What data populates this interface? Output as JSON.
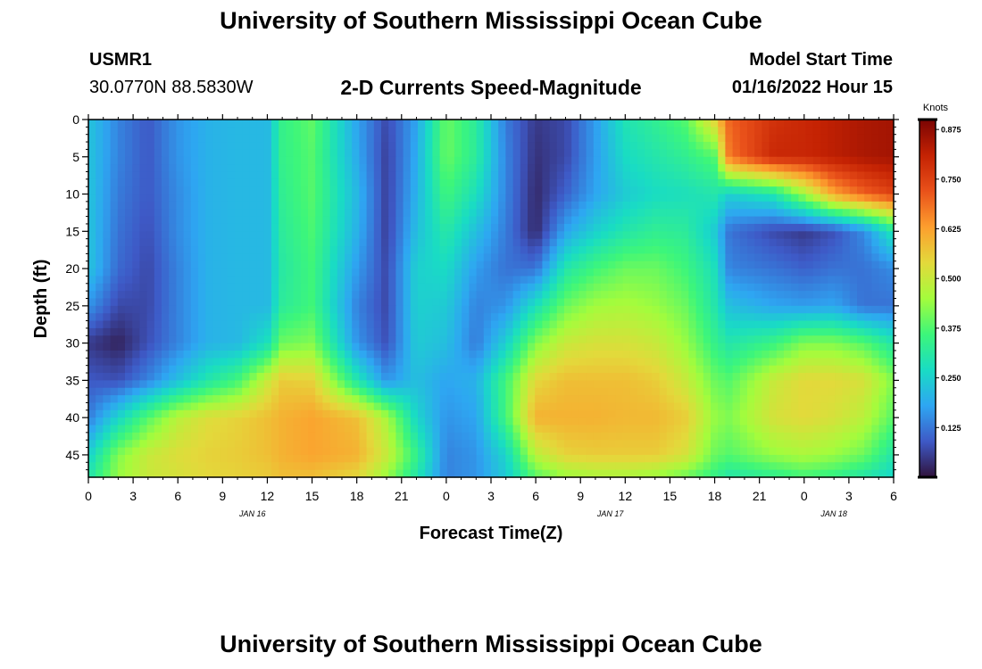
{
  "page": {
    "title": "University of Southern Mississippi Ocean Cube",
    "station_id": "USMR1",
    "location": "30.0770N  88.5830W",
    "subtitle": "2-D Currents Speed-Magnitude",
    "model_start_label": "Model Start Time",
    "model_start_value": "01/16/2022 Hour 15",
    "footer_title": "University of Southern Mississippi Ocean Cube"
  },
  "colors": {
    "colormap": [
      "#30123b",
      "#3e59c6",
      "#2ea6f2",
      "#19dcc4",
      "#3df67a",
      "#a4fc3c",
      "#e3d93b",
      "#fd9e2e",
      "#e9511a",
      "#c42203",
      "#7a0403"
    ]
  },
  "chart_data": {
    "type": "heatmap",
    "xlabel": "Forecast Time(Z)",
    "ylabel": "Depth (ft)",
    "x_ticks": [
      "0",
      "3",
      "6",
      "9",
      "12",
      "15",
      "18",
      "21",
      "0",
      "3",
      "6",
      "9",
      "12",
      "15",
      "18",
      "21",
      "0",
      "3",
      "6"
    ],
    "x_range": [
      0,
      54
    ],
    "date_labels": [
      {
        "label": "JAN 16",
        "hours_from_start": 11
      },
      {
        "label": "JAN 17",
        "hours_from_start": 35
      },
      {
        "label": "JAN 18",
        "hours_from_start": 50
      }
    ],
    "y_ticks": [
      0,
      5,
      10,
      15,
      20,
      25,
      30,
      35,
      40,
      45
    ],
    "y_range": [
      0,
      48
    ],
    "colorbar": {
      "label": "Knots",
      "ticks": [
        "0.875",
        "0.750",
        "0.625",
        "0.500",
        "0.375",
        "0.250",
        "0.125"
      ],
      "tick_values": [
        0.875,
        0.75,
        0.625,
        0.5,
        0.375,
        0.25,
        0.125
      ],
      "range": [
        0.0,
        0.9
      ]
    },
    "x_nodes": [
      0,
      2,
      4,
      6,
      8,
      10,
      12,
      13,
      15,
      18,
      20,
      22,
      24,
      26,
      28,
      30,
      32,
      34,
      36,
      38,
      40,
      42,
      43,
      46,
      48,
      50,
      52,
      54
    ],
    "depth_nodes": [
      0,
      5,
      10,
      15,
      20,
      25,
      30,
      35,
      40,
      45,
      48
    ],
    "speed_knots": [
      [
        0.23,
        0.14,
        0.09,
        0.16,
        0.2,
        0.21,
        0.21,
        0.34,
        0.39,
        0.18,
        0.07,
        0.18,
        0.4,
        0.32,
        0.13,
        0.05,
        0.07,
        0.17,
        0.29,
        0.33,
        0.38,
        0.55,
        0.7,
        0.78,
        0.8,
        0.82,
        0.84,
        0.85
      ],
      [
        0.23,
        0.14,
        0.09,
        0.16,
        0.2,
        0.21,
        0.21,
        0.34,
        0.38,
        0.19,
        0.06,
        0.19,
        0.4,
        0.32,
        0.14,
        0.04,
        0.07,
        0.17,
        0.27,
        0.3,
        0.33,
        0.38,
        0.68,
        0.8,
        0.8,
        0.82,
        0.84,
        0.85
      ],
      [
        0.23,
        0.13,
        0.09,
        0.15,
        0.2,
        0.21,
        0.21,
        0.33,
        0.38,
        0.21,
        0.06,
        0.2,
        0.36,
        0.28,
        0.14,
        0.03,
        0.1,
        0.18,
        0.24,
        0.27,
        0.28,
        0.3,
        0.25,
        0.3,
        0.45,
        0.62,
        0.7,
        0.75
      ],
      [
        0.23,
        0.12,
        0.08,
        0.15,
        0.2,
        0.21,
        0.21,
        0.32,
        0.37,
        0.2,
        0.06,
        0.22,
        0.31,
        0.22,
        0.13,
        0.03,
        0.18,
        0.25,
        0.3,
        0.33,
        0.32,
        0.24,
        0.12,
        0.07,
        0.05,
        0.08,
        0.15,
        0.3
      ],
      [
        0.23,
        0.11,
        0.07,
        0.14,
        0.2,
        0.21,
        0.21,
        0.31,
        0.36,
        0.17,
        0.07,
        0.25,
        0.27,
        0.17,
        0.12,
        0.12,
        0.3,
        0.36,
        0.4,
        0.4,
        0.36,
        0.28,
        0.14,
        0.12,
        0.1,
        0.12,
        0.12,
        0.15
      ],
      [
        0.16,
        0.07,
        0.07,
        0.14,
        0.2,
        0.21,
        0.21,
        0.32,
        0.36,
        0.14,
        0.07,
        0.25,
        0.24,
        0.14,
        0.16,
        0.28,
        0.4,
        0.45,
        0.46,
        0.44,
        0.4,
        0.3,
        0.22,
        0.18,
        0.17,
        0.18,
        0.12,
        0.12
      ],
      [
        0.05,
        0.02,
        0.08,
        0.14,
        0.2,
        0.21,
        0.28,
        0.4,
        0.42,
        0.16,
        0.08,
        0.24,
        0.22,
        0.13,
        0.25,
        0.42,
        0.5,
        0.52,
        0.52,
        0.5,
        0.44,
        0.34,
        0.3,
        0.35,
        0.42,
        0.42,
        0.38,
        0.3
      ],
      [
        0.09,
        0.08,
        0.14,
        0.22,
        0.3,
        0.36,
        0.5,
        0.56,
        0.55,
        0.3,
        0.16,
        0.22,
        0.18,
        0.2,
        0.36,
        0.54,
        0.58,
        0.58,
        0.58,
        0.56,
        0.5,
        0.4,
        0.38,
        0.5,
        0.54,
        0.54,
        0.52,
        0.42
      ],
      [
        0.13,
        0.26,
        0.38,
        0.48,
        0.53,
        0.55,
        0.58,
        0.6,
        0.62,
        0.58,
        0.46,
        0.26,
        0.16,
        0.18,
        0.36,
        0.6,
        0.6,
        0.6,
        0.59,
        0.59,
        0.56,
        0.44,
        0.42,
        0.52,
        0.54,
        0.52,
        0.48,
        0.38
      ],
      [
        0.25,
        0.42,
        0.5,
        0.53,
        0.55,
        0.56,
        0.58,
        0.6,
        0.62,
        0.6,
        0.5,
        0.34,
        0.14,
        0.16,
        0.26,
        0.48,
        0.55,
        0.56,
        0.56,
        0.56,
        0.52,
        0.4,
        0.38,
        0.44,
        0.46,
        0.44,
        0.4,
        0.3
      ],
      [
        0.3,
        0.44,
        0.5,
        0.52,
        0.54,
        0.55,
        0.56,
        0.58,
        0.58,
        0.54,
        0.44,
        0.3,
        0.14,
        0.16,
        0.24,
        0.38,
        0.44,
        0.46,
        0.46,
        0.44,
        0.4,
        0.34,
        0.3,
        0.33,
        0.36,
        0.34,
        0.3,
        0.26
      ]
    ]
  }
}
